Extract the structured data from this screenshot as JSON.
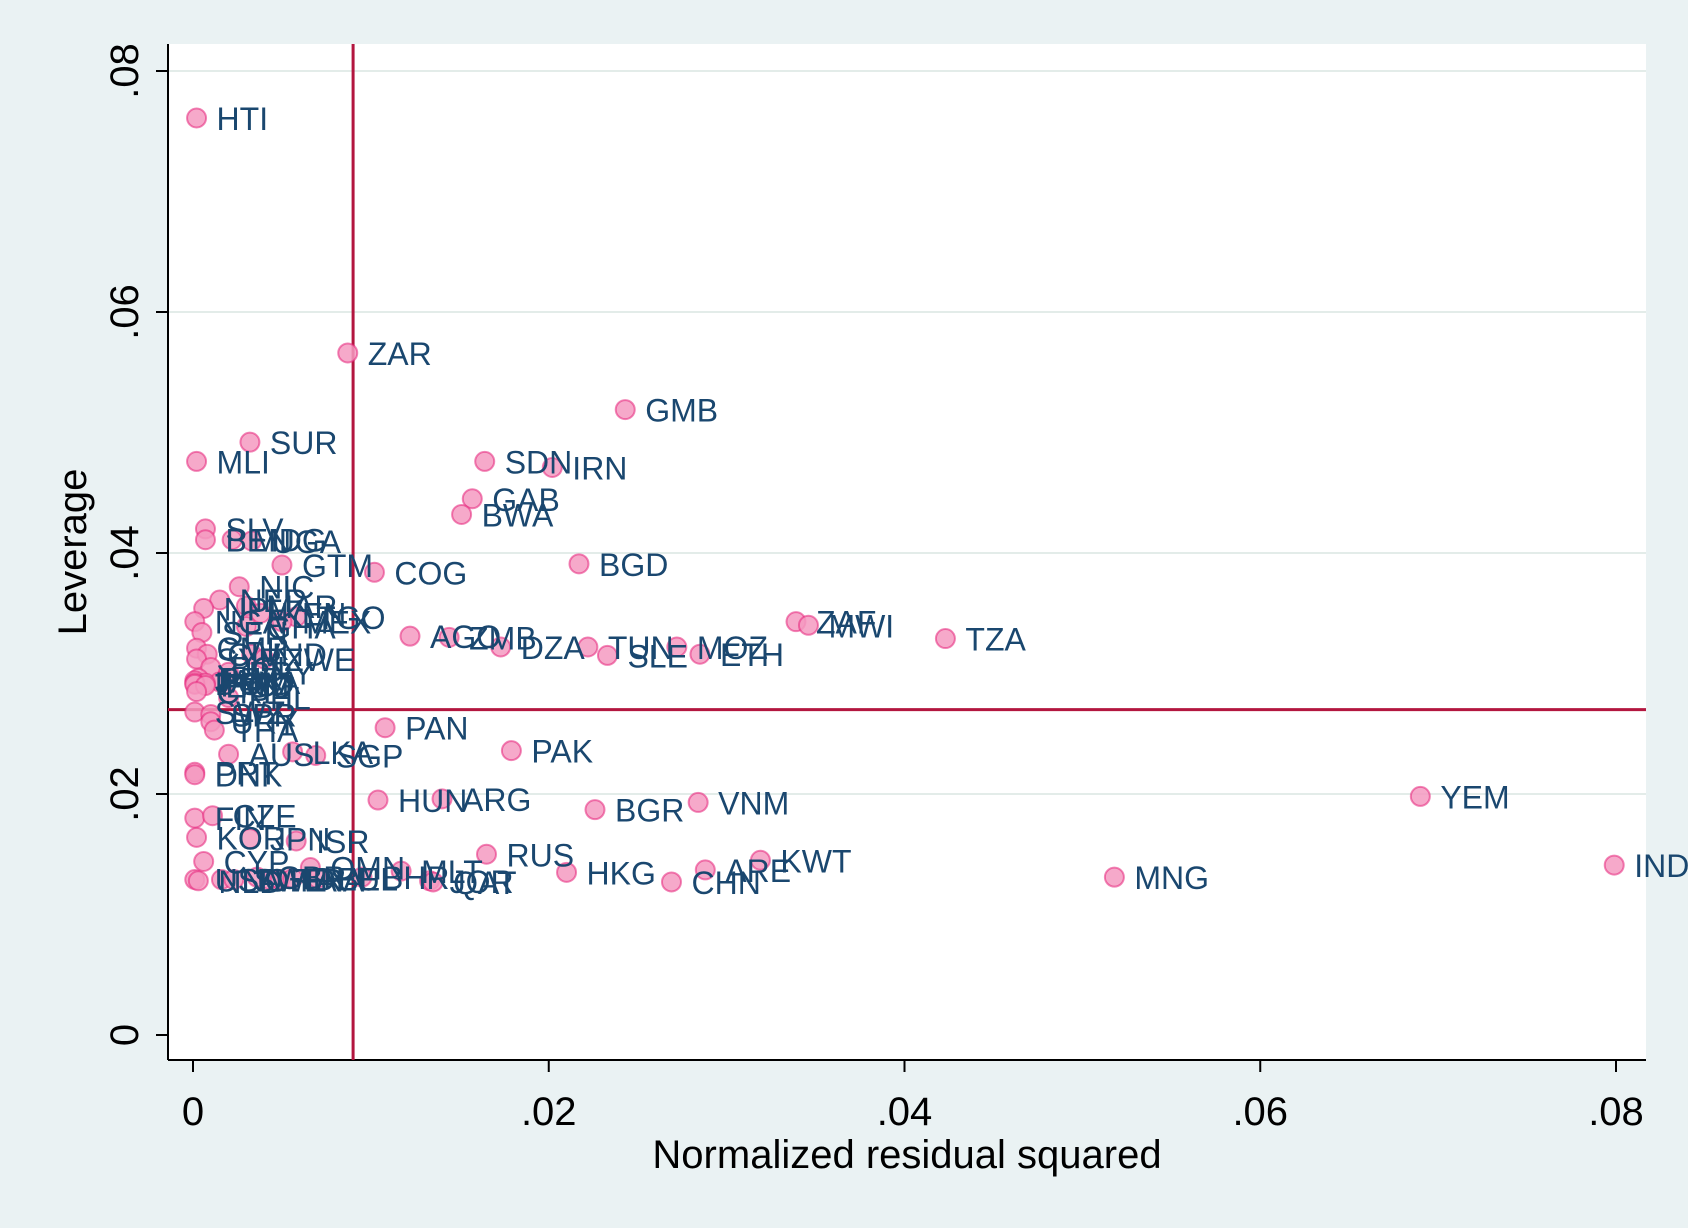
{
  "chart_data": {
    "type": "scatter",
    "title": "",
    "xlabel": "Normalized residual squared",
    "ylabel": "Leverage",
    "xlim": [
      0,
      0.08
    ],
    "ylim": [
      0,
      0.08
    ],
    "x_ticks": [
      {
        "value": 0,
        "label": "0"
      },
      {
        "value": 0.02,
        "label": ".02"
      },
      {
        "value": 0.04,
        "label": ".04"
      },
      {
        "value": 0.06,
        "label": ".06"
      },
      {
        "value": 0.08,
        "label": ".08"
      }
    ],
    "y_ticks": [
      {
        "value": 0,
        "label": "0"
      },
      {
        "value": 0.02,
        "label": ".02"
      },
      {
        "value": 0.04,
        "label": ".04"
      },
      {
        "value": 0.06,
        "label": ".06"
      },
      {
        "value": 0.08,
        "label": ".08"
      }
    ],
    "grid": "horizontal",
    "reference_lines": {
      "x": 0.009,
      "y": 0.027
    },
    "colors": {
      "background": "#eaf2f3",
      "plot_background": "#ffffff",
      "grid": "#e3ece9",
      "marker_fill": "#f49ac1",
      "marker_stroke": "#e5227a",
      "reference_line": "#b3163f",
      "label_text": "#1a476f"
    },
    "points": [
      {
        "label": "HTI",
        "x": 0.0002,
        "y": 0.0761
      },
      {
        "label": "ZAR",
        "x": 0.0087,
        "y": 0.0566
      },
      {
        "label": "GMB",
        "x": 0.0243,
        "y": 0.0519
      },
      {
        "label": "SUR",
        "x": 0.0032,
        "y": 0.0492
      },
      {
        "label": "MLI",
        "x": 0.0002,
        "y": 0.0476
      },
      {
        "label": "SDN",
        "x": 0.0164,
        "y": 0.0476
      },
      {
        "label": "IRN",
        "x": 0.0202,
        "y": 0.0471
      },
      {
        "label": "GAB",
        "x": 0.0157,
        "y": 0.0445
      },
      {
        "label": "BWA",
        "x": 0.0151,
        "y": 0.0432
      },
      {
        "label": "SLV",
        "x": 0.0007,
        "y": 0.042
      },
      {
        "label": "BEN",
        "x": 0.0007,
        "y": 0.0411
      },
      {
        "label": "MDG",
        "x": 0.0022,
        "y": 0.0411
      },
      {
        "label": "UGA",
        "x": 0.0033,
        "y": 0.041
      },
      {
        "label": "BGD",
        "x": 0.0217,
        "y": 0.0391
      },
      {
        "label": "GTM",
        "x": 0.005,
        "y": 0.039
      },
      {
        "label": "COG",
        "x": 0.0102,
        "y": 0.0384
      },
      {
        "label": "NIC",
        "x": 0.0026,
        "y": 0.0372
      },
      {
        "label": "NER",
        "x": 0.0015,
        "y": 0.0361
      },
      {
        "label": "MAR",
        "x": 0.003,
        "y": 0.0356
      },
      {
        "label": "NPL",
        "x": 0.0006,
        "y": 0.0354
      },
      {
        "label": "KEN",
        "x": 0.0038,
        "y": 0.035
      },
      {
        "label": "TGO",
        "x": 0.0058,
        "y": 0.0347
      },
      {
        "label": "MEX",
        "x": 0.005,
        "y": 0.0343
      },
      {
        "label": "NGA",
        "x": 0.0001,
        "y": 0.0343
      },
      {
        "label": "ZAF",
        "x": 0.0339,
        "y": 0.0343
      },
      {
        "label": "MWI",
        "x": 0.0346,
        "y": 0.034
      },
      {
        "label": "GHA",
        "x": 0.003,
        "y": 0.0339
      },
      {
        "label": "SEN",
        "x": 0.0005,
        "y": 0.0334
      },
      {
        "label": "AGO",
        "x": 0.0122,
        "y": 0.0331
      },
      {
        "label": "ZMB",
        "x": 0.0144,
        "y": 0.033
      },
      {
        "label": "TZA",
        "x": 0.0423,
        "y": 0.0329
      },
      {
        "label": "TUN",
        "x": 0.0222,
        "y": 0.0322
      },
      {
        "label": "DZA",
        "x": 0.0173,
        "y": 0.0322
      },
      {
        "label": "MOZ",
        "x": 0.0272,
        "y": 0.0322
      },
      {
        "label": "CMR",
        "x": 0.0002,
        "y": 0.0321
      },
      {
        "label": "CIV",
        "x": 0.0008,
        "y": 0.0316
      },
      {
        "label": "IND",
        "x": 0.0033,
        "y": 0.0316
      },
      {
        "label": "ETH",
        "x": 0.0285,
        "y": 0.0316
      },
      {
        "label": "SLE",
        "x": 0.0233,
        "y": 0.0315
      },
      {
        "label": "ZWE",
        "x": 0.004,
        "y": 0.0312
      },
      {
        "label": "SYR",
        "x": 0.0002,
        "y": 0.0312
      },
      {
        "label": "BOL",
        "x": 0.001,
        "y": 0.0305
      },
      {
        "label": "PRY",
        "x": 0.002,
        "y": 0.0301
      },
      {
        "label": "PER",
        "x": 0.0003,
        "y": 0.0296
      },
      {
        "label": "JAM",
        "x": 0.0001,
        "y": 0.0294
      },
      {
        "label": "LKA",
        "x": 0.0015,
        "y": 0.0293
      },
      {
        "label": "HND",
        "x": 0.0007,
        "y": 0.0292
      },
      {
        "label": "DOM",
        "x": 0.0001,
        "y": 0.0292
      },
      {
        "label": "TTO",
        "x": 0.0001,
        "y": 0.0291
      },
      {
        "label": "ECU",
        "x": 0.0007,
        "y": 0.029
      },
      {
        "label": "CRI",
        "x": 0.0002,
        "y": 0.0285
      },
      {
        "label": "PHL",
        "x": 0.002,
        "y": 0.028
      },
      {
        "label": "SWZ",
        "x": 0.0001,
        "y": 0.0268
      },
      {
        "label": "SPR",
        "x": 0.001,
        "y": 0.0266
      },
      {
        "label": "URY",
        "x": 0.001,
        "y": 0.026
      },
      {
        "label": "PAN",
        "x": 0.0108,
        "y": 0.0255
      },
      {
        "label": "THA",
        "x": 0.0012,
        "y": 0.0253
      },
      {
        "label": "PAK",
        "x": 0.0179,
        "y": 0.0236
      },
      {
        "label": "AUS",
        "x": 0.002,
        "y": 0.0233
      },
      {
        "label": "LKA",
        "x": 0.0056,
        "y": 0.0235
      },
      {
        "label": "SGP",
        "x": 0.0069,
        "y": 0.0232
      },
      {
        "label": "PRT",
        "x": 0.0001,
        "y": 0.0218
      },
      {
        "label": "DNK",
        "x": 0.0001,
        "y": 0.0216
      },
      {
        "label": "HUN",
        "x": 0.0104,
        "y": 0.0195
      },
      {
        "label": "ARG",
        "x": 0.014,
        "y": 0.0196
      },
      {
        "label": "VNM",
        "x": 0.0284,
        "y": 0.0193
      },
      {
        "label": "BGR",
        "x": 0.0226,
        "y": 0.0187
      },
      {
        "label": "YEM",
        "x": 0.069,
        "y": 0.0198
      },
      {
        "label": "FIN",
        "x": 0.0001,
        "y": 0.018
      },
      {
        "label": "CZE",
        "x": 0.0011,
        "y": 0.0182
      },
      {
        "label": "KOR",
        "x": 0.0002,
        "y": 0.0164
      },
      {
        "label": "JPN",
        "x": 0.0032,
        "y": 0.0163
      },
      {
        "label": "ISR",
        "x": 0.0058,
        "y": 0.0161
      },
      {
        "label": "RUS",
        "x": 0.0165,
        "y": 0.015
      },
      {
        "label": "KWT",
        "x": 0.0319,
        "y": 0.0145
      },
      {
        "label": "IND",
        "x": 0.0799,
        "y": 0.0141
      },
      {
        "label": "CYP",
        "x": 0.0006,
        "y": 0.0144
      },
      {
        "label": "OMN",
        "x": 0.0066,
        "y": 0.0139
      },
      {
        "label": "MLT",
        "x": 0.0117,
        "y": 0.0136
      },
      {
        "label": "HKG",
        "x": 0.021,
        "y": 0.0135
      },
      {
        "label": "ARE",
        "x": 0.0288,
        "y": 0.0137
      },
      {
        "label": "BHR",
        "x": 0.0095,
        "y": 0.0131
      },
      {
        "label": "JOR",
        "x": 0.0133,
        "y": 0.0128
      },
      {
        "label": "QAT",
        "x": 0.0135,
        "y": 0.0127
      },
      {
        "label": "MNG",
        "x": 0.0518,
        "y": 0.0131
      },
      {
        "label": "CHN",
        "x": 0.0269,
        "y": 0.0127
      },
      {
        "label": "USA",
        "x": 0.0001,
        "y": 0.0129
      },
      {
        "label": "NLD",
        "x": 0.0003,
        "y": 0.0128
      },
      {
        "label": "NOR",
        "x": 0.0016,
        "y": 0.0129
      },
      {
        "label": "SWE",
        "x": 0.0023,
        "y": 0.0129
      },
      {
        "label": "GBR",
        "x": 0.0036,
        "y": 0.0131
      },
      {
        "label": "ITA",
        "x": 0.0043,
        "y": 0.0129
      },
      {
        "label": "FRA",
        "x": 0.0049,
        "y": 0.0129
      },
      {
        "label": "DEU",
        "x": 0.0056,
        "y": 0.013
      },
      {
        "label": "BEL",
        "x": 0.007,
        "y": 0.013
      }
    ]
  }
}
